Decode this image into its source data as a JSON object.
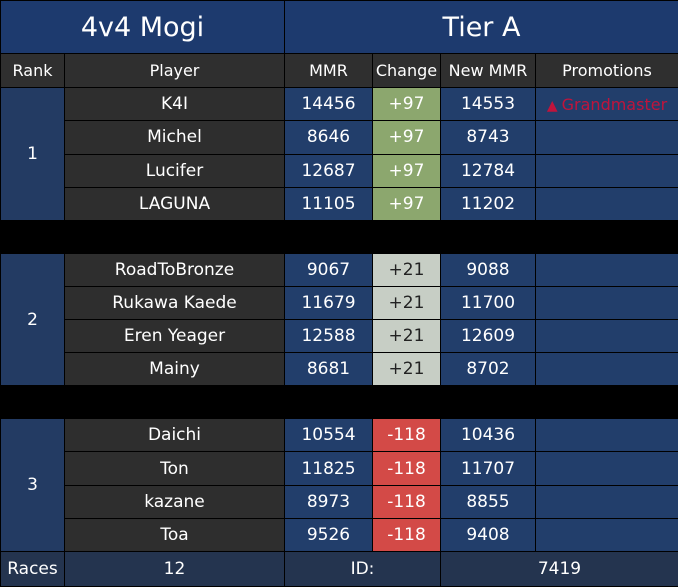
{
  "header": {
    "format": "4v4 Mogi",
    "tier": "Tier A"
  },
  "columns": {
    "rank": "Rank",
    "player": "Player",
    "mmr": "MMR",
    "change": "Change",
    "new_mmr": "New MMR",
    "promotions": "Promotions"
  },
  "teams": [
    {
      "rank": "1",
      "change_color": "#8ca76e",
      "players": [
        {
          "name": "K4I",
          "mmr": "14456",
          "change": "+97",
          "new_mmr": "14553",
          "promotion": "Grandmaster",
          "promotion_icon": "up-triangle-icon"
        },
        {
          "name": "Michel",
          "mmr": "8646",
          "change": "+97",
          "new_mmr": "8743",
          "promotion": ""
        },
        {
          "name": "Lucifer",
          "mmr": "12687",
          "change": "+97",
          "new_mmr": "12784",
          "promotion": ""
        },
        {
          "name": "LAGUNA",
          "mmr": "11105",
          "change": "+97",
          "new_mmr": "11202",
          "promotion": ""
        }
      ]
    },
    {
      "rank": "2",
      "change_color": "#c7cec5",
      "players": [
        {
          "name": "RoadToBronze",
          "mmr": "9067",
          "change": "+21",
          "new_mmr": "9088",
          "promotion": ""
        },
        {
          "name": "Rukawa Kaede",
          "mmr": "11679",
          "change": "+21",
          "new_mmr": "11700",
          "promotion": ""
        },
        {
          "name": "Eren Yeager",
          "mmr": "12588",
          "change": "+21",
          "new_mmr": "12609",
          "promotion": ""
        },
        {
          "name": "Mainy",
          "mmr": "8681",
          "change": "+21",
          "new_mmr": "8702",
          "promotion": ""
        }
      ]
    },
    {
      "rank": "3",
      "change_color": "#d34a47",
      "players": [
        {
          "name": "Daichi",
          "mmr": "10554",
          "change": "-118",
          "new_mmr": "10436",
          "promotion": ""
        },
        {
          "name": "Ton",
          "mmr": "11825",
          "change": "-118",
          "new_mmr": "11707",
          "promotion": ""
        },
        {
          "name": "kazane",
          "mmr": "8973",
          "change": "-118",
          "new_mmr": "8855",
          "promotion": ""
        },
        {
          "name": "Toa",
          "mmr": "9526",
          "change": "-118",
          "new_mmr": "9408",
          "promotion": ""
        }
      ]
    }
  ],
  "footer": {
    "races_label": "Races",
    "races_value": "12",
    "id_label": "ID:",
    "id_value": "7419"
  },
  "colors": {
    "header_bg": "#1d3a6e",
    "promotion_text": "#c0143c"
  }
}
